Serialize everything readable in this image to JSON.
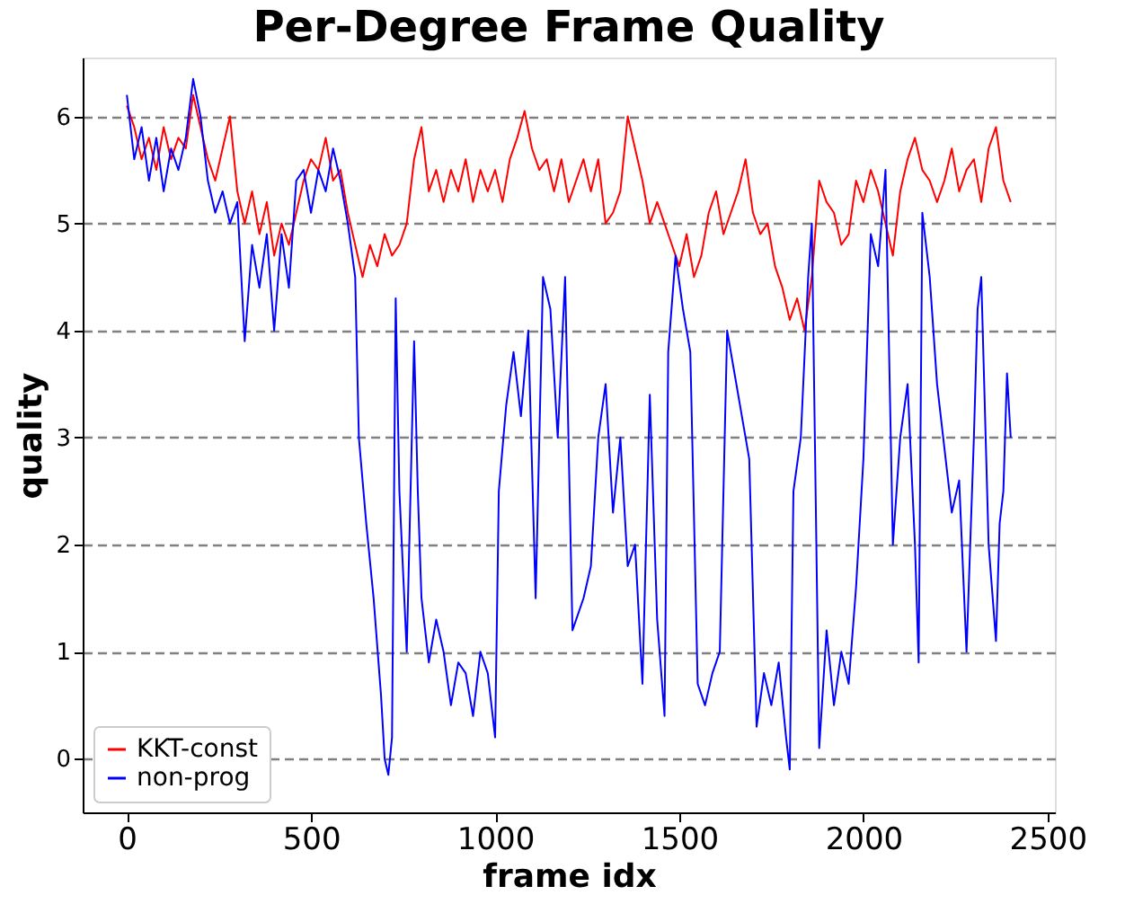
{
  "chart_data": {
    "type": "line",
    "title": "Per-Degree Frame Quality",
    "xlabel": "frame idx",
    "ylabel": "quality",
    "xlim": [
      -120,
      2520
    ],
    "ylim": [
      -0.5,
      6.55
    ],
    "xticks": [
      0,
      500,
      1000,
      1500,
      2000,
      2500
    ],
    "yticks": [
      0,
      1,
      2,
      3,
      4,
      5,
      6
    ],
    "grid": "y",
    "legend": "bottom left",
    "line_style": "solid",
    "marker": "none",
    "series": [
      {
        "name": "KKT-const",
        "color": "#ff0000",
        "x": [
          0,
          20,
          40,
          60,
          80,
          100,
          120,
          140,
          160,
          180,
          200,
          220,
          240,
          260,
          280,
          300,
          320,
          340,
          360,
          380,
          400,
          420,
          440,
          460,
          480,
          500,
          520,
          540,
          560,
          580,
          600,
          620,
          640,
          660,
          680,
          700,
          720,
          740,
          760,
          780,
          800,
          820,
          840,
          860,
          880,
          900,
          920,
          940,
          960,
          980,
          1000,
          1020,
          1040,
          1060,
          1080,
          1100,
          1120,
          1140,
          1160,
          1180,
          1200,
          1220,
          1240,
          1260,
          1280,
          1300,
          1320,
          1340,
          1360,
          1380,
          1400,
          1420,
          1440,
          1460,
          1480,
          1500,
          1520,
          1540,
          1560,
          1580,
          1600,
          1620,
          1640,
          1660,
          1680,
          1700,
          1720,
          1740,
          1760,
          1780,
          1800,
          1820,
          1840,
          1860,
          1880,
          1900,
          1920,
          1940,
          1960,
          1980,
          2000,
          2020,
          2040,
          2060,
          2080,
          2100,
          2120,
          2140,
          2160,
          2180,
          2200,
          2220,
          2240,
          2260,
          2280,
          2300,
          2320,
          2340,
          2360,
          2380,
          2400
        ],
        "values": [
          6.1,
          5.9,
          5.6,
          5.8,
          5.5,
          5.9,
          5.6,
          5.8,
          5.7,
          6.2,
          5.9,
          5.6,
          5.4,
          5.7,
          6.0,
          5.3,
          5.0,
          5.3,
          4.9,
          5.2,
          4.7,
          5.0,
          4.8,
          5.1,
          5.4,
          5.6,
          5.5,
          5.8,
          5.4,
          5.5,
          5.1,
          4.8,
          4.5,
          4.8,
          4.6,
          4.9,
          4.7,
          4.8,
          5.0,
          5.6,
          5.9,
          5.3,
          5.5,
          5.2,
          5.5,
          5.3,
          5.6,
          5.2,
          5.5,
          5.3,
          5.5,
          5.2,
          5.6,
          5.8,
          6.05,
          5.7,
          5.5,
          5.6,
          5.3,
          5.6,
          5.2,
          5.4,
          5.6,
          5.3,
          5.6,
          5.0,
          5.1,
          5.3,
          6.0,
          5.7,
          5.4,
          5.0,
          5.2,
          5.0,
          4.8,
          4.6,
          4.9,
          4.5,
          4.7,
          5.1,
          5.3,
          4.9,
          5.1,
          5.3,
          5.6,
          5.1,
          4.9,
          5.0,
          4.6,
          4.4,
          4.1,
          4.3,
          4.0,
          4.5,
          5.4,
          5.2,
          5.1,
          4.8,
          4.9,
          5.4,
          5.2,
          5.5,
          5.3,
          5.0,
          4.7,
          5.3,
          5.6,
          5.8,
          5.5,
          5.4,
          5.2,
          5.4,
          5.7,
          5.3,
          5.5,
          5.6,
          5.2,
          5.7,
          5.9,
          5.4,
          5.2
        ]
      },
      {
        "name": "non-prog",
        "color": "#0000ff",
        "x": [
          0,
          20,
          40,
          60,
          80,
          100,
          120,
          140,
          160,
          180,
          200,
          220,
          240,
          260,
          280,
          300,
          320,
          340,
          360,
          380,
          400,
          420,
          440,
          460,
          480,
          500,
          520,
          540,
          560,
          580,
          600,
          620,
          630,
          650,
          670,
          690,
          700,
          710,
          720,
          730,
          740,
          760,
          780,
          790,
          800,
          820,
          840,
          860,
          880,
          900,
          920,
          940,
          960,
          980,
          1000,
          1010,
          1030,
          1050,
          1070,
          1090,
          1110,
          1130,
          1150,
          1170,
          1190,
          1210,
          1240,
          1260,
          1280,
          1300,
          1320,
          1340,
          1360,
          1380,
          1400,
          1420,
          1440,
          1460,
          1470,
          1490,
          1510,
          1530,
          1550,
          1570,
          1590,
          1610,
          1630,
          1650,
          1670,
          1690,
          1710,
          1730,
          1750,
          1770,
          1790,
          1800,
          1810,
          1830,
          1850,
          1860,
          1880,
          1900,
          1920,
          1940,
          1960,
          1980,
          2000,
          2020,
          2040,
          2060,
          2080,
          2100,
          2120,
          2140,
          2150,
          2160,
          2180,
          2200,
          2220,
          2240,
          2260,
          2280,
          2300,
          2310,
          2320,
          2340,
          2360,
          2370,
          2380,
          2390,
          2400
        ],
        "values": [
          6.2,
          5.6,
          5.9,
          5.4,
          5.8,
          5.3,
          5.7,
          5.5,
          5.8,
          6.35,
          6.0,
          5.4,
          5.1,
          5.3,
          5.0,
          5.2,
          3.9,
          4.8,
          4.4,
          4.9,
          4.0,
          4.9,
          4.4,
          5.4,
          5.5,
          5.1,
          5.5,
          5.3,
          5.7,
          5.4,
          5.0,
          4.5,
          3.0,
          2.2,
          1.5,
          0.6,
          0.0,
          -0.15,
          0.2,
          4.3,
          2.5,
          1.0,
          3.9,
          2.5,
          1.5,
          0.9,
          1.3,
          1.0,
          0.5,
          0.9,
          0.8,
          0.4,
          1.0,
          0.8,
          0.2,
          2.5,
          3.3,
          3.8,
          3.2,
          4.0,
          1.5,
          4.5,
          4.2,
          3.0,
          4.5,
          1.2,
          1.5,
          1.8,
          3.0,
          3.5,
          2.3,
          3.0,
          1.8,
          2.0,
          0.7,
          3.4,
          1.3,
          0.4,
          3.8,
          4.7,
          4.2,
          3.8,
          0.7,
          0.5,
          0.8,
          1.0,
          4.0,
          3.6,
          3.2,
          2.8,
          0.3,
          0.8,
          0.5,
          0.9,
          0.2,
          -0.1,
          2.5,
          3.0,
          4.5,
          5.0,
          0.1,
          1.2,
          0.5,
          1.0,
          0.7,
          1.6,
          2.8,
          4.9,
          4.6,
          5.5,
          2.0,
          3.0,
          3.5,
          2.0,
          0.9,
          5.1,
          4.5,
          3.5,
          2.9,
          2.3,
          2.6,
          1.0,
          3.0,
          4.2,
          4.5,
          2.0,
          1.1,
          2.2,
          2.5,
          3.6,
          3.0
        ]
      }
    ]
  }
}
